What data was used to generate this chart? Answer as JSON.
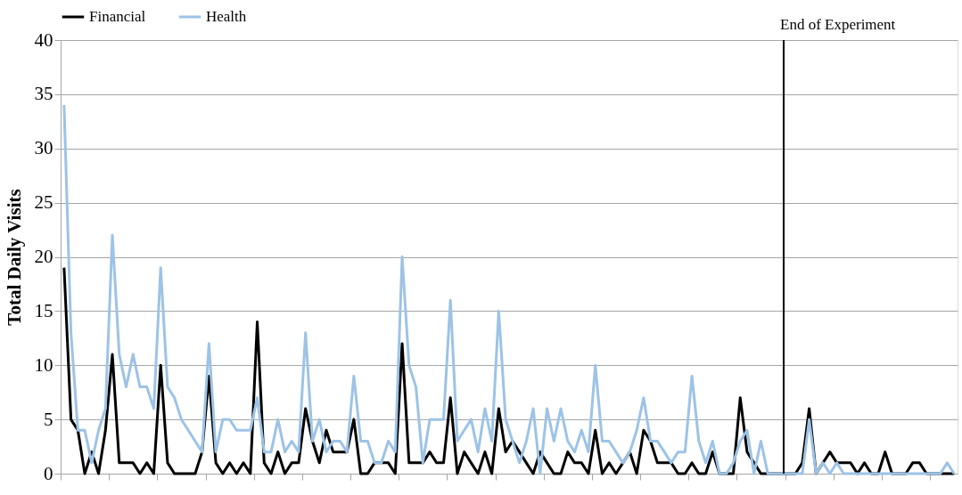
{
  "chart_data": {
    "type": "line",
    "ylabel": "Total Daily Visits",
    "categories": [
      null,
      null,
      null,
      null,
      null,
      null,
      null,
      null,
      null,
      null,
      null,
      null,
      null,
      null,
      null,
      null,
      null,
      null,
      null,
      null,
      null,
      null,
      null,
      null,
      null,
      null,
      null,
      null,
      null,
      null,
      null,
      null,
      null,
      null,
      null,
      null,
      null,
      null,
      null,
      null,
      null,
      null,
      null,
      null,
      null,
      null,
      null,
      null,
      null,
      null,
      null,
      null,
      null,
      null,
      null,
      null,
      null,
      null,
      null,
      null,
      null,
      null,
      null,
      null,
      null,
      null,
      null,
      null,
      null,
      null,
      null,
      null,
      null,
      null,
      null,
      null,
      null,
      null,
      null,
      null,
      null,
      null,
      null,
      null,
      null,
      null,
      null,
      null,
      null,
      null,
      null,
      null,
      null,
      null,
      null,
      null,
      null,
      null,
      null,
      null,
      null,
      null,
      null,
      null,
      null,
      null,
      null,
      null,
      null,
      null,
      null,
      null,
      null,
      null,
      null,
      null,
      null,
      null,
      null,
      null,
      null,
      null,
      null,
      null,
      null,
      null,
      null,
      null,
      null,
      null
    ],
    "series": [
      {
        "name": "Financial",
        "color": "#000000",
        "values": [
          19,
          5,
          4,
          0,
          2,
          0,
          4,
          11,
          1,
          1,
          1,
          0,
          1,
          0,
          10,
          1,
          0,
          0,
          0,
          0,
          2,
          9,
          1,
          0,
          1,
          0,
          1,
          0,
          14,
          1,
          0,
          2,
          0,
          1,
          1,
          6,
          3,
          1,
          4,
          2,
          2,
          2,
          5,
          0,
          0,
          1,
          1,
          1,
          0,
          12,
          1,
          1,
          1,
          2,
          1,
          1,
          7,
          0,
          2,
          1,
          0,
          2,
          0,
          6,
          2,
          3,
          2,
          1,
          0,
          2,
          1,
          0,
          0,
          2,
          1,
          1,
          0,
          4,
          0,
          1,
          0,
          1,
          2,
          0,
          4,
          3,
          1,
          1,
          1,
          0,
          0,
          1,
          0,
          0,
          2,
          0,
          0,
          0,
          7,
          2,
          1,
          0,
          0,
          0,
          0,
          0,
          0,
          1,
          6,
          0,
          1,
          2,
          1,
          1,
          1,
          0,
          1,
          0,
          0,
          2,
          0,
          0,
          0,
          1,
          1,
          0,
          0,
          0,
          0,
          0
        ]
      },
      {
        "name": "Health",
        "color": "#9dc3e6",
        "values": [
          34,
          13,
          4,
          4,
          1,
          4,
          6,
          22,
          11,
          8,
          11,
          8,
          8,
          6,
          19,
          8,
          7,
          5,
          4,
          3,
          2,
          12,
          2,
          5,
          5,
          4,
          4,
          4,
          7,
          2,
          2,
          5,
          2,
          3,
          2,
          13,
          3,
          5,
          2,
          3,
          3,
          2,
          9,
          3,
          3,
          1,
          1,
          3,
          2,
          20,
          10,
          8,
          1,
          5,
          5,
          5,
          16,
          3,
          4,
          5,
          2,
          6,
          3,
          15,
          5,
          3,
          1,
          3,
          6,
          0,
          6,
          3,
          6,
          3,
          2,
          4,
          2,
          10,
          3,
          3,
          2,
          1,
          2,
          4,
          7,
          3,
          3,
          2,
          1,
          2,
          2,
          9,
          3,
          1,
          3,
          0,
          0,
          1,
          3,
          4,
          0,
          3,
          0,
          0,
          0,
          0,
          0,
          0,
          5,
          0,
          1,
          0,
          1,
          0,
          0,
          0,
          0,
          0,
          0,
          0,
          0,
          0,
          0,
          0,
          0,
          0,
          0,
          0,
          1,
          0
        ]
      }
    ],
    "ylim": [
      0,
      40
    ],
    "yticks": [
      0,
      5,
      10,
      15,
      20,
      25,
      30,
      35,
      40
    ],
    "grid": "y",
    "legend": "top",
    "line_style": "solid",
    "annotations": [
      "End of Experiment"
    ]
  }
}
